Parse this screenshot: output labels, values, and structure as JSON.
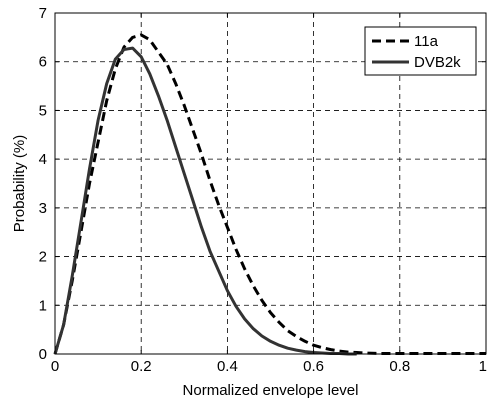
{
  "chart_data": {
    "type": "line",
    "xlabel": "Normalized envelope level",
    "ylabel": "Probability (%)",
    "xlim": [
      0,
      1
    ],
    "ylim": [
      0,
      7
    ],
    "x_ticks": [
      0,
      0.2,
      0.4,
      0.6,
      0.8,
      1
    ],
    "x_tick_labels": [
      "0",
      "0.2",
      "0.4",
      "0.6",
      "0.8",
      "1"
    ],
    "y_ticks": [
      0,
      1,
      2,
      3,
      4,
      5,
      6,
      7
    ],
    "y_tick_labels": [
      "0",
      "1",
      "2",
      "3",
      "4",
      "5",
      "6",
      "7"
    ],
    "grid": true,
    "legend_position": "top-right",
    "series": [
      {
        "name": "11a",
        "color": "#000000",
        "dash": "dashed",
        "x": [
          0,
          0.02,
          0.04,
          0.06,
          0.08,
          0.1,
          0.12,
          0.14,
          0.16,
          0.18,
          0.2,
          0.22,
          0.24,
          0.26,
          0.28,
          0.3,
          0.32,
          0.34,
          0.36,
          0.38,
          0.4,
          0.42,
          0.44,
          0.46,
          0.48,
          0.5,
          0.52,
          0.54,
          0.56,
          0.58,
          0.6,
          0.62,
          0.64,
          0.66,
          0.68,
          0.7,
          0.72,
          0.75,
          0.8,
          0.85,
          0.9,
          0.95,
          1.0
        ],
        "y": [
          0,
          0.6,
          1.5,
          2.5,
          3.5,
          4.35,
          5.2,
          5.85,
          6.3,
          6.5,
          6.55,
          6.45,
          6.2,
          5.95,
          5.55,
          5.1,
          4.6,
          4.1,
          3.55,
          3.05,
          2.6,
          2.15,
          1.75,
          1.4,
          1.1,
          0.85,
          0.65,
          0.48,
          0.36,
          0.26,
          0.18,
          0.13,
          0.09,
          0.06,
          0.04,
          0.03,
          0.02,
          0.01,
          0.01,
          0.01,
          0.01,
          0.01,
          0.01
        ]
      },
      {
        "name": "DVB2k",
        "color": "#333333",
        "dash": "solid",
        "x": [
          0,
          0.02,
          0.04,
          0.06,
          0.08,
          0.1,
          0.12,
          0.14,
          0.16,
          0.18,
          0.2,
          0.22,
          0.24,
          0.26,
          0.28,
          0.3,
          0.32,
          0.34,
          0.36,
          0.38,
          0.4,
          0.42,
          0.44,
          0.46,
          0.48,
          0.5,
          0.52,
          0.54,
          0.56,
          0.58,
          0.6,
          0.62,
          0.64,
          0.66,
          0.68,
          0.7
        ],
        "y": [
          0,
          0.6,
          1.6,
          2.7,
          3.8,
          4.8,
          5.55,
          6.05,
          6.25,
          6.28,
          6.1,
          5.75,
          5.3,
          4.8,
          4.25,
          3.7,
          3.15,
          2.6,
          2.1,
          1.7,
          1.3,
          0.98,
          0.72,
          0.52,
          0.37,
          0.26,
          0.18,
          0.12,
          0.08,
          0.05,
          0.03,
          0.02,
          0.01,
          0.01,
          0.0,
          0.0
        ]
      }
    ]
  }
}
